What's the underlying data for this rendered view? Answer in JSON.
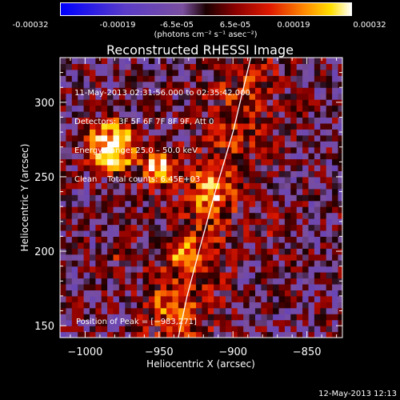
{
  "colorbar": {
    "tick_labels": [
      "-0.00032",
      "-0.00019",
      "-6.5e-05",
      "6.5e-05",
      "0.00019",
      "0.00032"
    ],
    "unit_label": "(photons cm⁻² s⁻¹ asec⁻²)"
  },
  "chart_data": {
    "type": "heatmap",
    "title": "Reconstructed RHESSI Image",
    "xlabel": "Heliocentric X (arcsec)",
    "ylabel": "Heliocentric Y (arcsec)",
    "xlim": [
      -1017,
      -826
    ],
    "ylim": [
      142,
      330
    ],
    "x_ticks": [
      -1000,
      -950,
      -900,
      -850
    ],
    "x_tick_labels": [
      "−1000",
      "−950",
      "−900",
      "−850"
    ],
    "y_ticks": [
      150,
      200,
      250,
      300
    ],
    "y_tick_labels": [
      "150",
      "200",
      "250",
      "300"
    ],
    "value_range": [
      -0.00032,
      0.00032
    ],
    "grid": false,
    "sources": [
      {
        "x": -983,
        "y": 271,
        "value": 0.00032
      },
      {
        "x": -950,
        "y": 257,
        "value": 0.00028
      },
      {
        "x": -915,
        "y": 240,
        "value": 0.00016
      },
      {
        "x": -935,
        "y": 200,
        "value": 0.00014
      },
      {
        "x": -945,
        "y": 165,
        "value": 0.00012
      },
      {
        "x": -975,
        "y": 200,
        "value": 8e-05
      },
      {
        "x": -870,
        "y": 215,
        "value": 5e-05
      }
    ],
    "limb_curve": [
      [
        -937,
        142
      ],
      [
        -931,
        170
      ],
      [
        -923,
        200
      ],
      [
        -912,
        240
      ],
      [
        -900,
        280
      ],
      [
        -888,
        330
      ]
    ],
    "info_lines": [
      "11-May-2013 02:31:56.000 to 02:35:42.000",
      "Detectors: 3F 5F 6F 7F 8F 9F, Att 0",
      "Energy Range: 25.0 – 50.0 keV",
      "Clean    Total counts: 6.45E+03"
    ],
    "peak_label": "Position of Peak = [−983,271]"
  },
  "timestamp": "12-May-2013 12:13"
}
